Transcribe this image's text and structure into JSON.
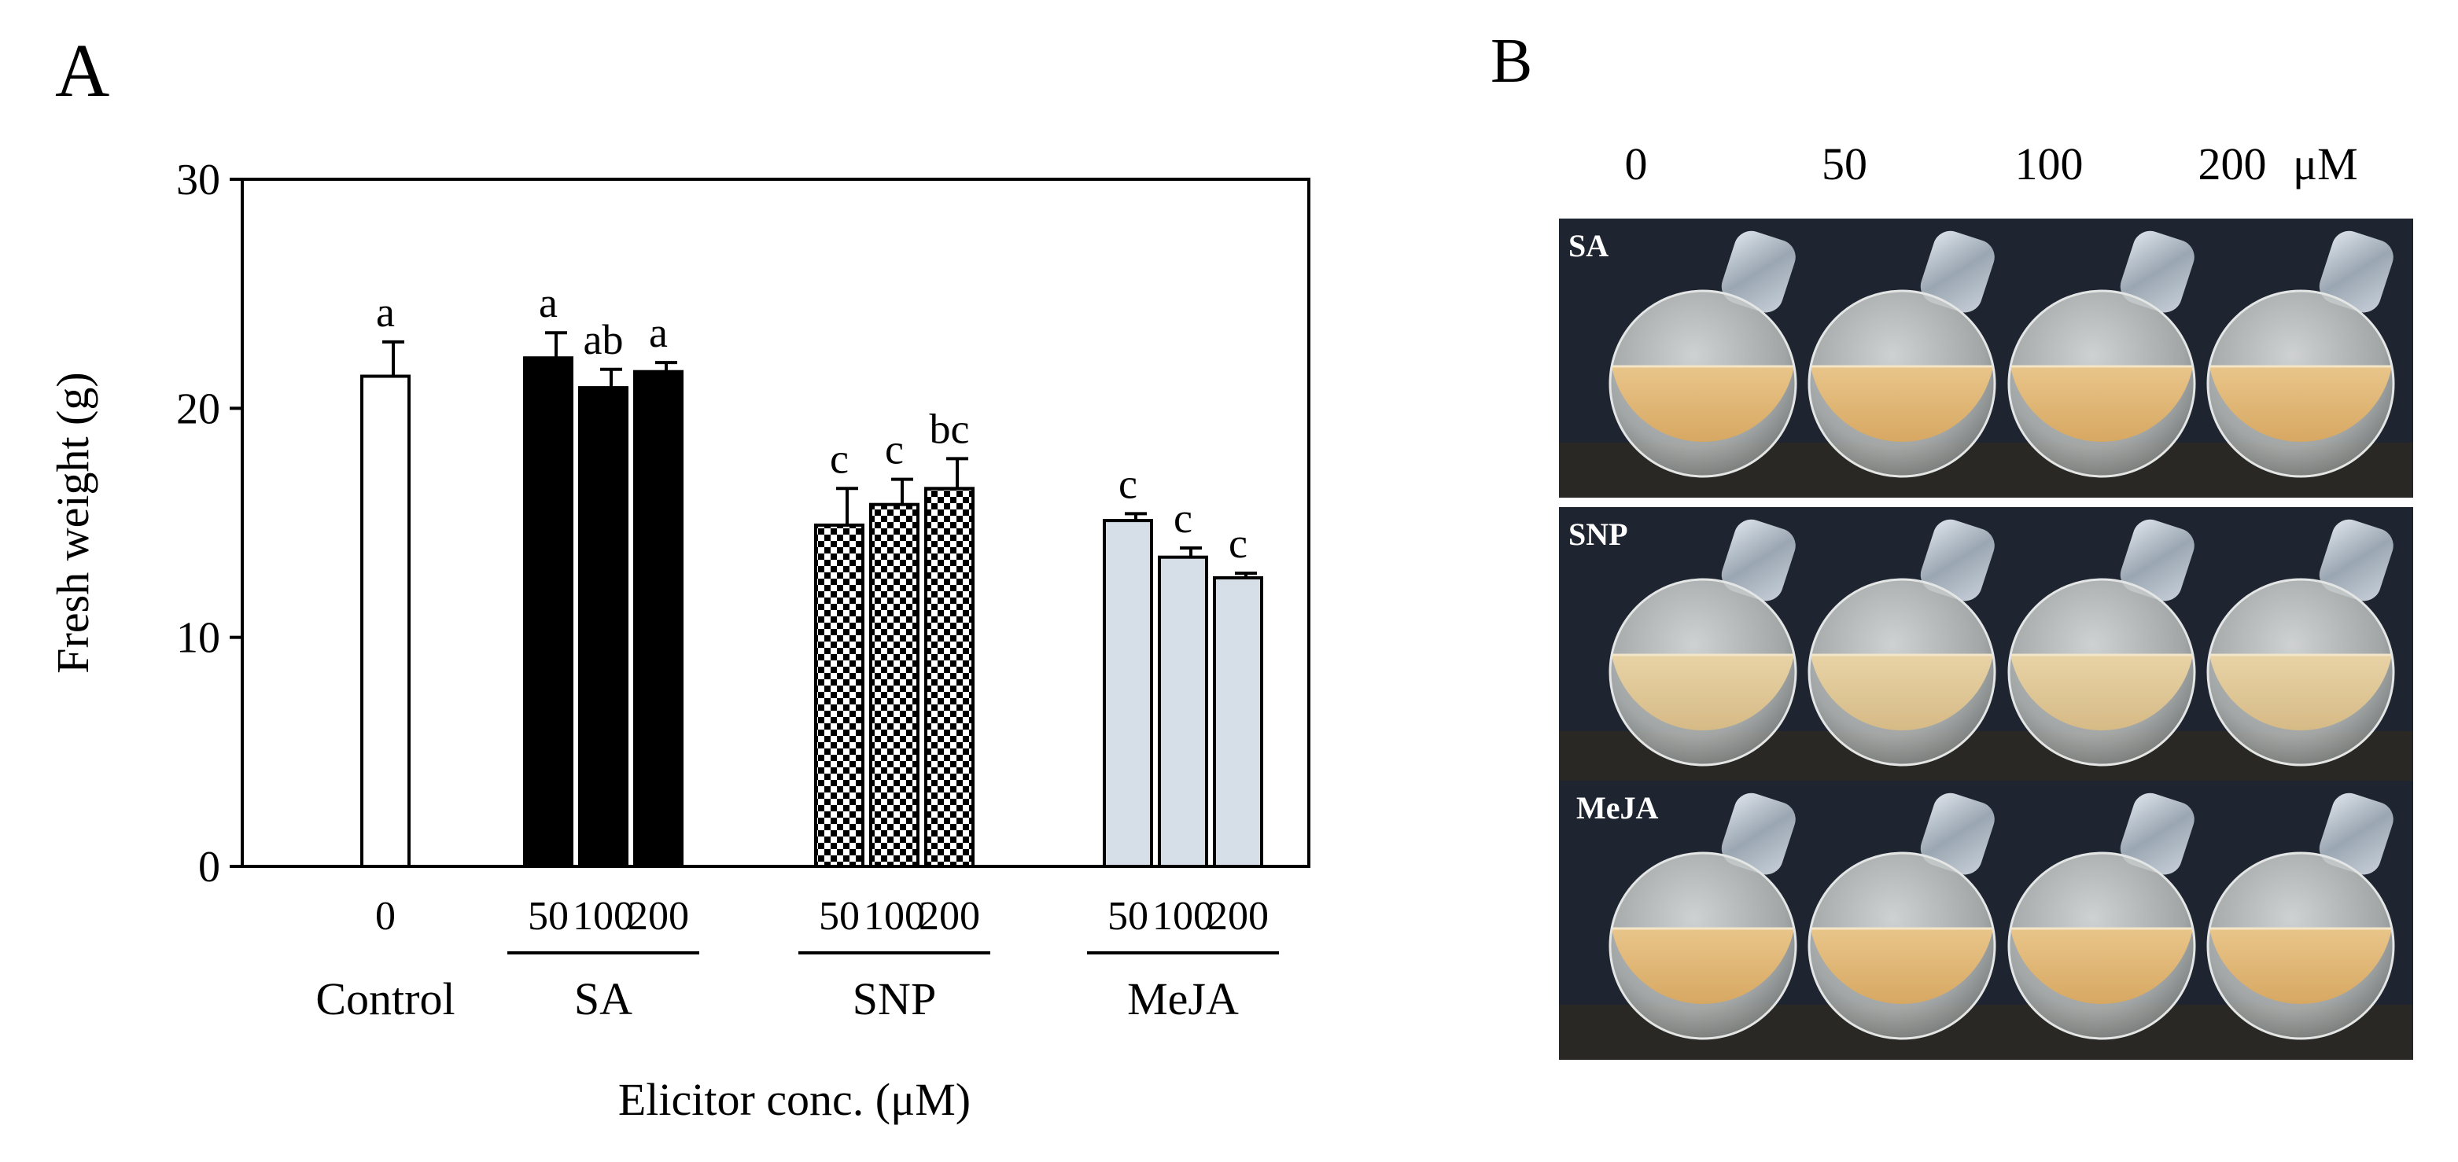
{
  "panel_a_label": "A",
  "panel_b_label": "B",
  "chart_data": {
    "type": "bar",
    "title": "",
    "ylabel": "Fresh weight (g)",
    "xlabel": "Elicitor conc. (μM)",
    "ylim": [
      0,
      30
    ],
    "yticks": [
      0,
      10,
      20,
      30
    ],
    "grid": false,
    "groups": [
      {
        "name": "Control",
        "fill": "white",
        "color": "#ffffff",
        "bars": [
          {
            "conc": "0",
            "value": 21.4,
            "err": 1.5,
            "letter": "a"
          }
        ]
      },
      {
        "name": "SA",
        "fill": "solid",
        "color": "#000000",
        "bars": [
          {
            "conc": "50",
            "value": 22.2,
            "err": 1.1,
            "letter": "a"
          },
          {
            "conc": "100",
            "value": 20.9,
            "err": 0.8,
            "letter": "ab"
          },
          {
            "conc": "200",
            "value": 21.6,
            "err": 0.4,
            "letter": "a"
          }
        ]
      },
      {
        "name": "SNP",
        "fill": "checker",
        "color": "#000000",
        "bars": [
          {
            "conc": "50",
            "value": 14.9,
            "err": 1.6,
            "letter": "c"
          },
          {
            "conc": "100",
            "value": 15.8,
            "err": 1.1,
            "letter": "c"
          },
          {
            "conc": "200",
            "value": 16.5,
            "err": 1.3,
            "letter": "bc"
          }
        ]
      },
      {
        "name": "MeJA",
        "fill": "light",
        "color": "#d6dee8",
        "bars": [
          {
            "conc": "50",
            "value": 15.1,
            "err": 0.3,
            "letter": "c"
          },
          {
            "conc": "100",
            "value": 13.5,
            "err": 0.4,
            "letter": "c"
          },
          {
            "conc": "200",
            "value": 12.6,
            "err": 0.2,
            "letter": "c"
          }
        ]
      }
    ]
  },
  "photo_panel": {
    "concentration_headers": [
      "0",
      "50",
      "100",
      "200"
    ],
    "unit": "μM",
    "rows": [
      {
        "label": "SA"
      },
      {
        "label": "SNP"
      },
      {
        "label": "MeJA"
      }
    ]
  }
}
